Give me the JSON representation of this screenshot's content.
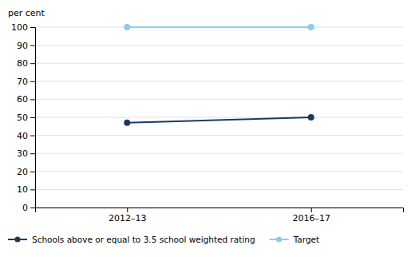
{
  "chart_data": {
    "type": "line",
    "y_label": "per cent",
    "categories": [
      "2012–13",
      "2016–17"
    ],
    "series": [
      {
        "name": "Schools above or equal to 3.5 school weighted rating",
        "color": "#1b3a5c",
        "marker": "circle",
        "values": [
          47,
          50
        ]
      },
      {
        "name": "Target",
        "color": "#87ceeb",
        "marker": "circle",
        "values": [
          100,
          100
        ]
      }
    ],
    "ylim": [
      0,
      100
    ],
    "yticks": [
      0,
      10,
      20,
      30,
      40,
      50,
      60,
      70,
      80,
      90,
      100
    ],
    "grid": true,
    "legend": "bottom"
  }
}
